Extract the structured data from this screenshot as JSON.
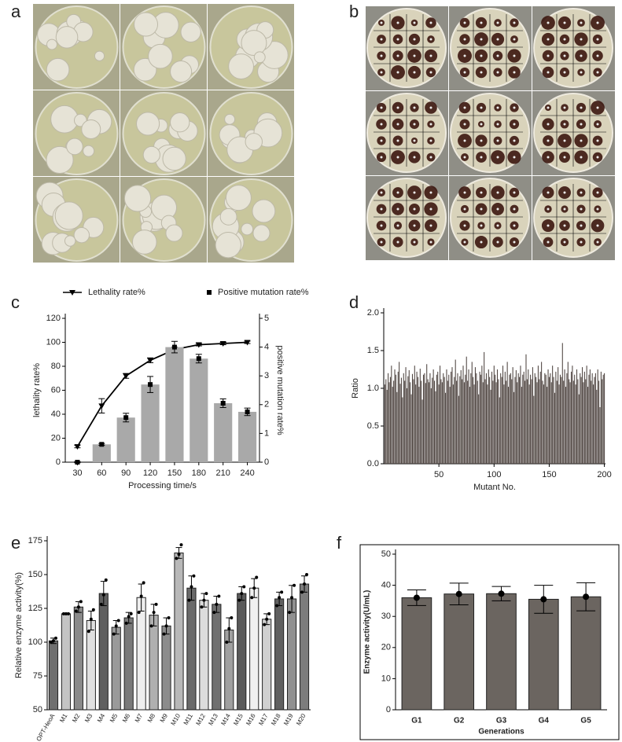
{
  "panel_labels": [
    "a",
    "b",
    "c",
    "d",
    "e",
    "f"
  ],
  "chart_data": [
    {
      "type": "combo",
      "x": [
        30,
        60,
        90,
        120,
        150,
        180,
        210,
        240
      ],
      "xlim": [
        15,
        255
      ],
      "xticks": [
        30,
        60,
        90,
        120,
        150,
        180,
        210,
        240
      ],
      "xlabel": "Processing time/s",
      "ylabel": "lethality rate%",
      "y2label": "positive mutation rate%",
      "ylim": [
        0,
        120
      ],
      "yticks": [
        0,
        20,
        40,
        60,
        80,
        100,
        120
      ],
      "y2lim": [
        0,
        5
      ],
      "y2ticks": [
        0,
        1,
        2,
        3,
        4,
        5
      ],
      "series": [
        {
          "name": "Lethality rate%",
          "type": "line",
          "color": "#000000",
          "values": [
            13,
            47,
            72,
            85,
            94,
            98,
            99,
            100
          ],
          "errors": [
            1,
            6,
            2,
            2,
            2,
            1,
            1,
            1
          ]
        },
        {
          "name": "Positive mutation rate%",
          "type": "bar",
          "axis": "y2",
          "color": "#a9a9a9",
          "values": [
            0,
            0.62,
            1.55,
            2.7,
            4.0,
            3.6,
            2.05,
            1.75
          ],
          "errors": [
            0.02,
            0.03,
            0.15,
            0.28,
            0.2,
            0.15,
            0.15,
            0.13
          ]
        }
      ]
    },
    {
      "type": "bar",
      "xlabel": "Mutant No.",
      "ylabel": "Ratio",
      "color": "#4e4440",
      "xlim": [
        0,
        201
      ],
      "xticks": [
        50,
        100,
        150,
        200
      ],
      "ylim": [
        0,
        2
      ],
      "yticks": [
        {
          "value": 0,
          "label": "0.0"
        },
        {
          "value": 0.5,
          "label": "0.5"
        },
        {
          "value": 1,
          "label": "1.0"
        },
        {
          "value": 1.5,
          "label": "1.5"
        },
        {
          "value": 2,
          "label": "2.0"
        }
      ],
      "x": [
        1,
        2,
        3,
        4,
        5,
        6,
        7,
        8,
        9,
        10,
        11,
        12,
        13,
        14,
        15,
        16,
        17,
        18,
        19,
        20,
        21,
        22,
        23,
        24,
        25,
        26,
        27,
        28,
        29,
        30,
        31,
        32,
        33,
        34,
        35,
        36,
        37,
        38,
        39,
        40,
        41,
        42,
        43,
        44,
        45,
        46,
        47,
        48,
        49,
        50,
        51,
        52,
        53,
        54,
        55,
        56,
        57,
        58,
        59,
        60,
        61,
        62,
        63,
        64,
        65,
        66,
        67,
        68,
        69,
        70,
        71,
        72,
        73,
        74,
        75,
        76,
        77,
        78,
        79,
        80,
        81,
        82,
        83,
        84,
        85,
        86,
        87,
        88,
        89,
        90,
        91,
        92,
        93,
        94,
        95,
        96,
        97,
        98,
        99,
        100,
        101,
        102,
        103,
        104,
        105,
        106,
        107,
        108,
        109,
        110,
        111,
        112,
        113,
        114,
        115,
        116,
        117,
        118,
        119,
        120,
        121,
        122,
        123,
        124,
        125,
        126,
        127,
        128,
        129,
        130,
        131,
        132,
        133,
        134,
        135,
        136,
        137,
        138,
        139,
        140,
        141,
        142,
        143,
        144,
        145,
        146,
        147,
        148,
        149,
        150,
        151,
        152,
        153,
        154,
        155,
        156,
        157,
        158,
        159,
        160,
        161,
        162,
        163,
        164,
        165,
        166,
        167,
        168,
        169,
        170,
        171,
        172,
        173,
        174,
        175,
        176,
        177,
        178,
        179,
        180,
        181,
        182,
        183,
        184,
        185,
        186,
        187,
        188,
        189,
        190,
        191,
        192,
        193,
        194,
        195,
        196,
        197,
        198,
        199,
        200
      ],
      "values": [
        1.05,
        1.12,
        0.98,
        1.2,
        1.08,
        1.15,
        1.3,
        1.02,
        1.1,
        1.25,
        1.18,
        0.95,
        1.22,
        1.35,
        1.06,
        1.14,
        0.88,
        1.2,
        1.1,
        1.28,
        1.0,
        1.16,
        1.24,
        1.08,
        0.92,
        1.19,
        1.12,
        1.3,
        1.05,
        1.22,
        1.15,
        1.02,
        1.26,
        1.1,
        0.85,
        1.18,
        1.2,
        1.07,
        1.32,
        1.12,
        1.08,
        1.2,
        1.0,
        1.14,
        1.25,
        1.1,
        0.96,
        1.18,
        1.22,
        1.05,
        1.3,
        1.12,
        1.08,
        1.2,
        1.15,
        0.94,
        1.25,
        1.1,
        1.18,
        1.02,
        1.22,
        1.28,
        1.05,
        1.15,
        1.38,
        1.1,
        1.2,
        0.9,
        1.16,
        1.24,
        1.12,
        1.3,
        1.08,
        1.18,
        1.42,
        1.1,
        1.25,
        1.02,
        1.2,
        1.35,
        1.15,
        1.05,
        1.28,
        1.2,
        1.1,
        0.92,
        1.22,
        1.18,
        1.3,
        1.08,
        1.48,
        1.12,
        1.2,
        1.05,
        1.25,
        1.15,
        0.98,
        1.22,
        1.1,
        1.3,
        1.18,
        1.08,
        1.25,
        1.12,
        0.88,
        1.2,
        1.15,
        1.3,
        1.05,
        1.22,
        1.1,
        1.35,
        1.02,
        1.18,
        1.2,
        1.12,
        1.28,
        0.95,
        1.15,
        1.24,
        1.08,
        1.2,
        1.15,
        1.3,
        1.02,
        1.18,
        1.22,
        1.1,
        1.45,
        1.12,
        1.25,
        1.05,
        1.18,
        1.12,
        1.28,
        0.9,
        1.2,
        1.15,
        1.08,
        1.3,
        1.12,
        1.22,
        1.35,
        1.1,
        1.05,
        1.2,
        1.18,
        1.02,
        1.25,
        1.15,
        1.2,
        1.08,
        1.3,
        1.15,
        0.94,
        1.22,
        1.1,
        1.28,
        1.05,
        1.18,
        1.15,
        1.6,
        1.1,
        1.25,
        1.02,
        1.2,
        1.35,
        1.12,
        1.08,
        1.22,
        1.3,
        1.1,
        1.18,
        1.05,
        1.25,
        1.12,
        0.92,
        1.2,
        1.15,
        1.28,
        1.08,
        1.22,
        1.12,
        1.3,
        1.02,
        1.18,
        1.25,
        1.1,
        1.2,
        1.05,
        1.15,
        1.2,
        0.98,
        1.25,
        1.1,
        0.75,
        1.22,
        1.12,
        1.18,
        1.2
      ]
    },
    {
      "type": "bar",
      "ylabel": "Relative enzyme activity(%)",
      "categories": [
        "OPT-HeoA",
        "M1",
        "M2",
        "M3",
        "M4",
        "M5",
        "M6",
        "M7",
        "M8",
        "M9",
        "M10",
        "M11",
        "M12",
        "M13",
        "M14",
        "M15",
        "M16",
        "M17",
        "M18",
        "M19",
        "M20"
      ],
      "values": [
        101,
        121,
        126,
        116,
        136,
        111,
        118,
        133,
        120,
        112,
        166,
        140,
        131,
        128,
        109,
        136,
        140,
        117,
        132,
        132,
        143
      ],
      "errors": [
        2,
        0.5,
        4,
        7,
        9,
        5,
        4,
        10,
        8,
        6,
        4,
        9,
        5,
        6,
        9,
        5,
        7,
        4,
        5,
        10,
        6
      ],
      "points": [
        [
          100,
          101,
          103
        ],
        [
          121,
          121,
          121
        ],
        [
          123,
          126,
          130
        ],
        [
          108,
          117,
          124
        ],
        [
          128,
          135,
          146
        ],
        [
          106,
          112,
          116
        ],
        [
          114,
          119,
          121
        ],
        [
          122,
          134,
          144
        ],
        [
          112,
          122,
          128
        ],
        [
          106,
          112,
          118
        ],
        [
          162,
          165,
          172
        ],
        [
          131,
          141,
          149
        ],
        [
          126,
          131,
          136
        ],
        [
          122,
          128,
          134
        ],
        [
          100,
          110,
          118
        ],
        [
          131,
          136,
          141
        ],
        [
          133,
          140,
          148
        ],
        [
          113,
          117,
          121
        ],
        [
          127,
          133,
          137
        ],
        [
          122,
          133,
          142
        ],
        [
          137,
          143,
          150
        ]
      ],
      "colors": [
        "#6f6f6f",
        "#c4c4c4",
        "#8a8a8a",
        "#e0e0e0",
        "#5f5f5f",
        "#9a9a9a",
        "#7a7a7a",
        "#eeeeee",
        "#b0b0b0",
        "#8c8c8c",
        "#b8b8b8",
        "#6a6a6a",
        "#dcdcdc",
        "#707070",
        "#a0a0a0",
        "#5a5a5a",
        "#f0f0f0",
        "#d0d0d0",
        "#606060",
        "#909090",
        "#7c7c7c"
      ],
      "ylim": [
        50,
        175
      ],
      "yticks": [
        50,
        75,
        100,
        125,
        150,
        175
      ]
    },
    {
      "type": "bar",
      "ylabel": "Enzyme activity(U/mL)",
      "xlabel": "Generations",
      "color": "#6b6560",
      "frame": true,
      "categories": [
        "G1",
        "G2",
        "G3",
        "G4",
        "G5"
      ],
      "values": [
        36,
        37.2,
        37.3,
        35.5,
        36.3
      ],
      "errors": [
        2.5,
        3.5,
        2.3,
        4.5,
        4.5
      ],
      "ylim": [
        0,
        50
      ],
      "yticks": [
        0,
        10,
        20,
        30,
        40,
        50
      ]
    }
  ]
}
